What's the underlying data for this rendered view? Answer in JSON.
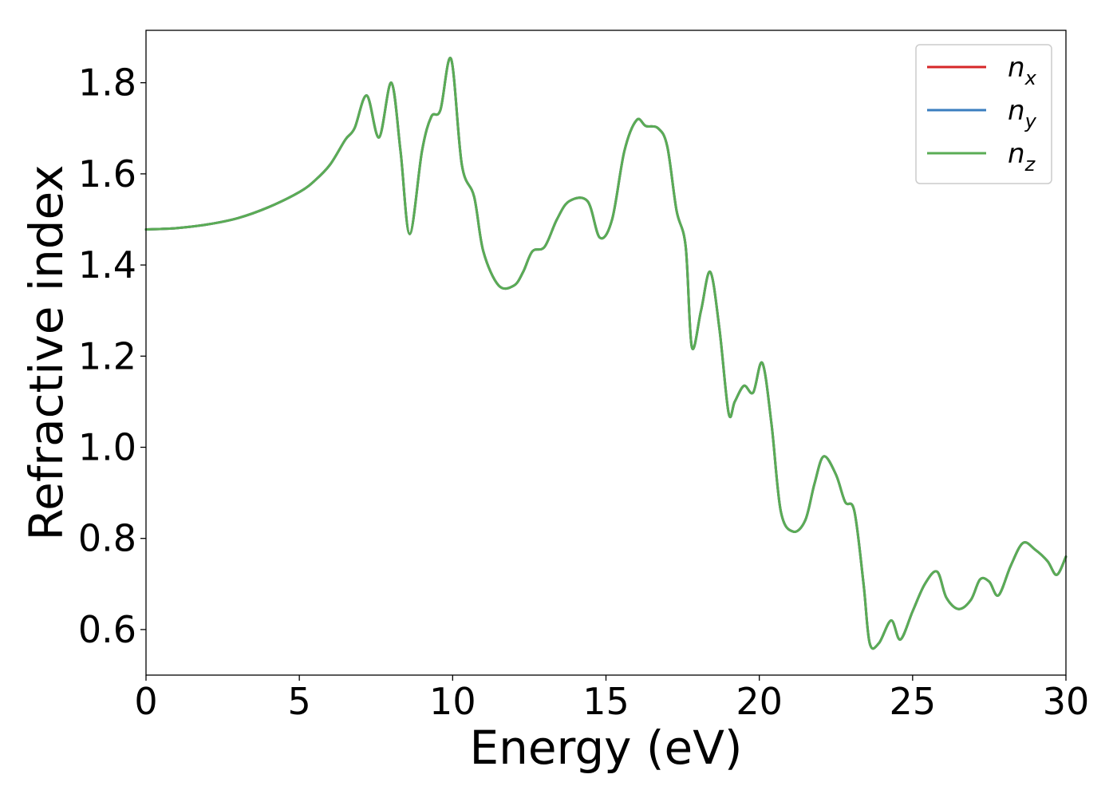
{
  "chart_data": {
    "type": "line",
    "title": "",
    "xlabel": "Energy (eV)",
    "ylabel": "Refractive index",
    "xlim": [
      0,
      30
    ],
    "ylim": [
      0.5,
      1.915
    ],
    "xticks": [
      0,
      5,
      10,
      15,
      20,
      25,
      30
    ],
    "xtick_labels": [
      "0",
      "5",
      "10",
      "15",
      "20",
      "25",
      "30"
    ],
    "yticks": [
      0.6,
      0.8,
      1.0,
      1.2,
      1.4,
      1.6,
      1.8
    ],
    "ytick_labels": [
      "0.6",
      "0.8",
      "1.0",
      "1.2",
      "1.4",
      "1.6",
      "1.8"
    ],
    "grid": false,
    "legend_position": "top-right",
    "legend": [
      {
        "base": "n",
        "sub": "x",
        "color": "#d62728"
      },
      {
        "base": "n",
        "sub": "y",
        "color": "#3a7ebf"
      },
      {
        "base": "n",
        "sub": "z",
        "color": "#5aac55"
      }
    ],
    "x": [
      0,
      1,
      2,
      3,
      4,
      5,
      5.5,
      6,
      6.5,
      6.8,
      7.2,
      7.6,
      8.0,
      8.3,
      8.6,
      9.0,
      9.3,
      9.6,
      9.95,
      10.3,
      10.7,
      11.0,
      11.5,
      12.0,
      12.3,
      12.6,
      13.0,
      13.4,
      13.8,
      14.4,
      14.8,
      15.2,
      15.6,
      16.0,
      16.3,
      16.7,
      17.0,
      17.3,
      17.6,
      17.8,
      18.1,
      18.4,
      18.7,
      19.0,
      19.2,
      19.5,
      19.8,
      20.1,
      20.4,
      20.7,
      21.1,
      21.5,
      21.8,
      22.1,
      22.5,
      22.8,
      23.1,
      23.4,
      23.6,
      23.9,
      24.3,
      24.6,
      25.0,
      25.4,
      25.8,
      26.1,
      26.5,
      26.9,
      27.2,
      27.5,
      27.8,
      28.2,
      28.6,
      29.0,
      29.4,
      29.7,
      30.0
    ],
    "series": [
      {
        "name": "n_x",
        "color": "#d62728",
        "values": [
          1.478,
          1.481,
          1.489,
          1.503,
          1.527,
          1.56,
          1.585,
          1.62,
          1.675,
          1.7,
          1.772,
          1.68,
          1.8,
          1.65,
          1.468,
          1.65,
          1.725,
          1.74,
          1.852,
          1.62,
          1.55,
          1.43,
          1.355,
          1.355,
          1.385,
          1.43,
          1.44,
          1.5,
          1.54,
          1.54,
          1.46,
          1.5,
          1.65,
          1.718,
          1.705,
          1.7,
          1.66,
          1.52,
          1.44,
          1.22,
          1.3,
          1.385,
          1.26,
          1.075,
          1.1,
          1.135,
          1.12,
          1.185,
          1.05,
          0.86,
          0.815,
          0.84,
          0.92,
          0.98,
          0.94,
          0.88,
          0.86,
          0.7,
          0.57,
          0.57,
          0.62,
          0.578,
          0.64,
          0.7,
          0.727,
          0.67,
          0.645,
          0.665,
          0.71,
          0.705,
          0.675,
          0.74,
          0.79,
          0.775,
          0.75,
          0.72,
          0.76
        ]
      },
      {
        "name": "n_y",
        "color": "#3a7ebf",
        "values": [
          1.478,
          1.481,
          1.489,
          1.503,
          1.527,
          1.56,
          1.585,
          1.62,
          1.675,
          1.7,
          1.772,
          1.68,
          1.8,
          1.65,
          1.468,
          1.65,
          1.725,
          1.74,
          1.852,
          1.62,
          1.55,
          1.43,
          1.355,
          1.355,
          1.385,
          1.43,
          1.44,
          1.5,
          1.54,
          1.54,
          1.46,
          1.5,
          1.65,
          1.718,
          1.705,
          1.7,
          1.66,
          1.52,
          1.44,
          1.22,
          1.3,
          1.385,
          1.26,
          1.075,
          1.1,
          1.135,
          1.12,
          1.185,
          1.05,
          0.86,
          0.815,
          0.84,
          0.92,
          0.98,
          0.94,
          0.88,
          0.86,
          0.7,
          0.57,
          0.57,
          0.62,
          0.578,
          0.64,
          0.7,
          0.727,
          0.67,
          0.645,
          0.665,
          0.71,
          0.705,
          0.675,
          0.74,
          0.79,
          0.775,
          0.75,
          0.72,
          0.76
        ]
      },
      {
        "name": "n_z",
        "color": "#5aac55",
        "values": [
          1.478,
          1.481,
          1.489,
          1.503,
          1.527,
          1.56,
          1.585,
          1.62,
          1.675,
          1.7,
          1.772,
          1.68,
          1.8,
          1.65,
          1.468,
          1.65,
          1.725,
          1.74,
          1.852,
          1.62,
          1.55,
          1.43,
          1.355,
          1.355,
          1.385,
          1.43,
          1.44,
          1.5,
          1.54,
          1.54,
          1.46,
          1.5,
          1.65,
          1.718,
          1.705,
          1.7,
          1.66,
          1.52,
          1.44,
          1.22,
          1.3,
          1.385,
          1.26,
          1.075,
          1.1,
          1.135,
          1.12,
          1.185,
          1.05,
          0.86,
          0.815,
          0.84,
          0.92,
          0.98,
          0.94,
          0.88,
          0.86,
          0.7,
          0.57,
          0.57,
          0.62,
          0.578,
          0.64,
          0.7,
          0.727,
          0.67,
          0.645,
          0.665,
          0.71,
          0.705,
          0.675,
          0.74,
          0.79,
          0.775,
          0.75,
          0.72,
          0.76
        ]
      }
    ]
  }
}
